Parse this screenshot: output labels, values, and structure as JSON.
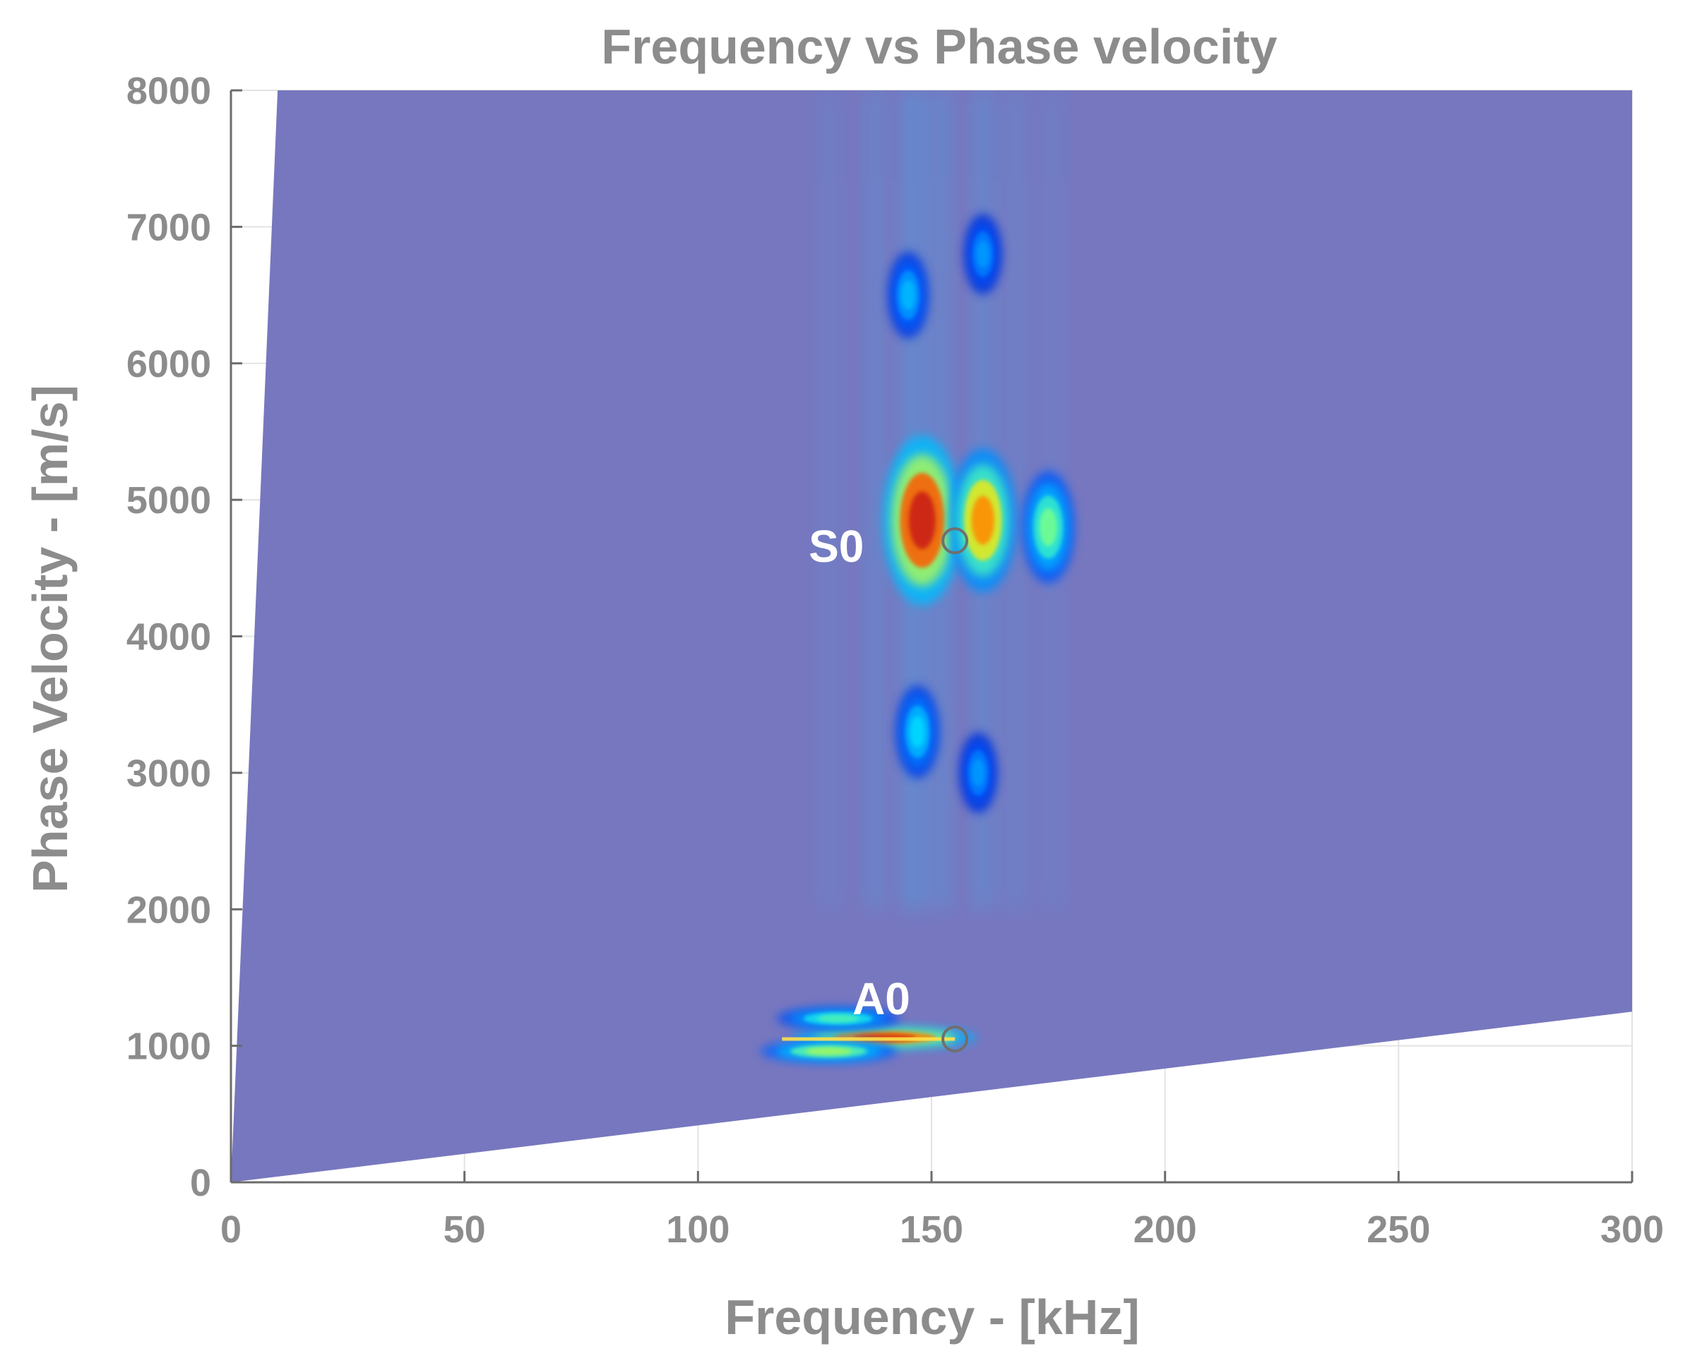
{
  "chart_data": {
    "type": "heatmap",
    "title": "Frequency vs Phase velocity",
    "xlabel": "Frequency - [kHz]",
    "ylabel": "Phase Velocity - [m/s]",
    "xlim": [
      0,
      300
    ],
    "ylim": [
      0,
      8000
    ],
    "x_ticks": [
      0,
      50,
      100,
      150,
      200,
      250,
      300
    ],
    "y_ticks": [
      0,
      1000,
      2000,
      3000,
      4000,
      5000,
      6000,
      7000,
      8000
    ],
    "grid": true,
    "colormap": "jet",
    "background_color": "#7777bf",
    "domain_boundary": {
      "upper_line": [
        [
          0,
          0
        ],
        [
          10,
          8000
        ]
      ],
      "lower_line": [
        [
          0,
          0
        ],
        [
          300,
          1250
        ]
      ]
    },
    "energy_regions": [
      {
        "frequency": 148,
        "phase_velocity": 4850,
        "intensity": 1.0
      },
      {
        "frequency": 161,
        "phase_velocity": 4850,
        "intensity": 0.8
      },
      {
        "frequency": 175,
        "phase_velocity": 4800,
        "intensity": 0.55
      },
      {
        "frequency": 147,
        "phase_velocity": 3300,
        "intensity": 0.4
      },
      {
        "frequency": 160,
        "phase_velocity": 3000,
        "intensity": 0.3
      },
      {
        "frequency": 145,
        "phase_velocity": 6500,
        "intensity": 0.35
      },
      {
        "frequency": 161,
        "phase_velocity": 6800,
        "intensity": 0.3
      },
      {
        "frequency": 140,
        "phase_velocity": 1060,
        "intensity": 0.95
      },
      {
        "frequency": 130,
        "phase_velocity": 1200,
        "intensity": 0.5
      },
      {
        "frequency": 128,
        "phase_velocity": 960,
        "intensity": 0.6
      }
    ],
    "annotations": [
      {
        "label": "S0",
        "frequency": 155,
        "phase_velocity": 4700
      },
      {
        "label": "A0",
        "frequency": 155,
        "phase_velocity": 1050
      }
    ]
  }
}
